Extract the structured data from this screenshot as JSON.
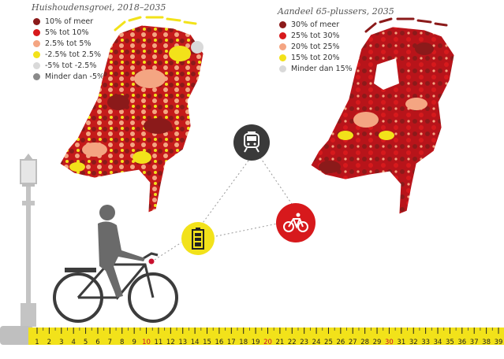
{
  "left_panel": {
    "title": "Huishoudensgroei, 2018–2035",
    "legend": [
      {
        "label": "10% of meer",
        "color": "#8b1a1a"
      },
      {
        "label": "5% tot 10%",
        "color": "#d7191c"
      },
      {
        "label": "2.5% tot 5%",
        "color": "#f4a582"
      },
      {
        "label": "-2.5% tot 2.5%",
        "color": "#f2e21a"
      },
      {
        "label": "-5% tot -2.5%",
        "color": "#d9d9d9"
      },
      {
        "label": "Minder dan -5%",
        "color": "#8a8a8a"
      }
    ]
  },
  "right_panel": {
    "title": "Aandeel 65-plussers, 2035",
    "legend": [
      {
        "label": "30% of meer",
        "color": "#8b1a1a"
      },
      {
        "label": "25% tot 30%",
        "color": "#d7191c"
      },
      {
        "label": "20% tot 25%",
        "color": "#f4a582"
      },
      {
        "label": "15% tot 20%",
        "color": "#f2e21a"
      },
      {
        "label": "Minder dan 15%",
        "color": "#d9d9d9"
      }
    ]
  },
  "icons": {
    "train": {
      "color": "#3a3a3a"
    },
    "bike": {
      "color": "#d7191c"
    },
    "battery": {
      "color": "#f2e21a"
    }
  },
  "ruler": {
    "labels": [
      "1",
      "2",
      "3",
      "4",
      "5",
      "6",
      "7",
      "8",
      "9",
      "10",
      "11",
      "12",
      "13",
      "14",
      "15",
      "16",
      "17",
      "18",
      "19",
      "20",
      "21",
      "22",
      "23",
      "24",
      "25",
      "26",
      "27",
      "28",
      "29",
      "30",
      "31",
      "32",
      "33",
      "34",
      "35",
      "36",
      "37",
      "38",
      "39"
    ],
    "red_labels": [
      "10",
      "20",
      "30"
    ]
  }
}
